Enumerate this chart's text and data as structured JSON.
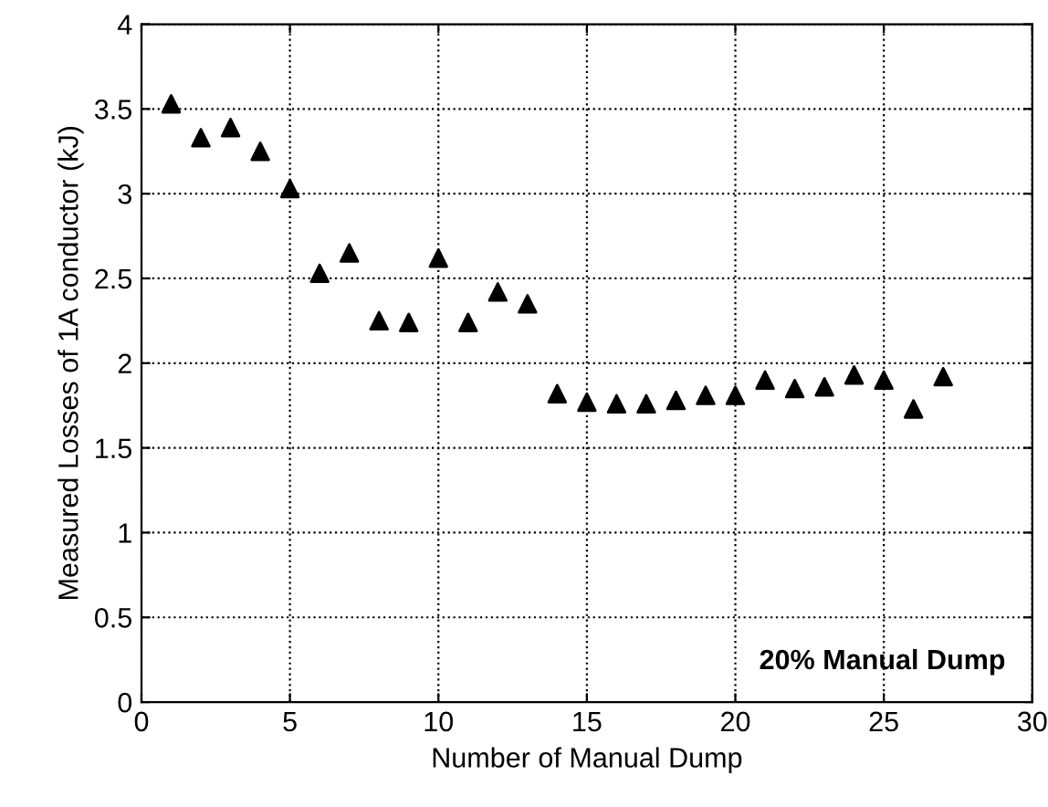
{
  "chart_data": {
    "type": "scatter",
    "xlabel": "Number of Manual Dump",
    "ylabel": "Measured Losses of 1A conductor (kJ)",
    "x": [
      1,
      2,
      3,
      4,
      5,
      6,
      7,
      8,
      9,
      10,
      11,
      12,
      13,
      14,
      15,
      16,
      17,
      18,
      19,
      20,
      21,
      22,
      23,
      24,
      25,
      26,
      27
    ],
    "series": [
      {
        "color": "#000000",
        "values": [
          3.53,
          3.33,
          3.39,
          3.25,
          3.03,
          2.53,
          2.65,
          2.25,
          2.24,
          2.62,
          2.24,
          2.42,
          2.35,
          1.82,
          1.77,
          1.76,
          1.76,
          1.78,
          1.81,
          1.81,
          1.9,
          1.85,
          1.86,
          1.93,
          1.9,
          1.73,
          1.92
        ]
      }
    ],
    "xlim": [
      0,
      30
    ],
    "xticks": [
      0,
      5,
      10,
      15,
      20,
      25,
      30
    ],
    "ylim": [
      0,
      4
    ],
    "yticks": [
      0,
      0.5,
      1,
      1.5,
      2,
      2.5,
      3,
      3.5,
      4
    ],
    "grid": true,
    "marker": "triangle",
    "annotations": [
      "20% Manual Dump"
    ]
  }
}
